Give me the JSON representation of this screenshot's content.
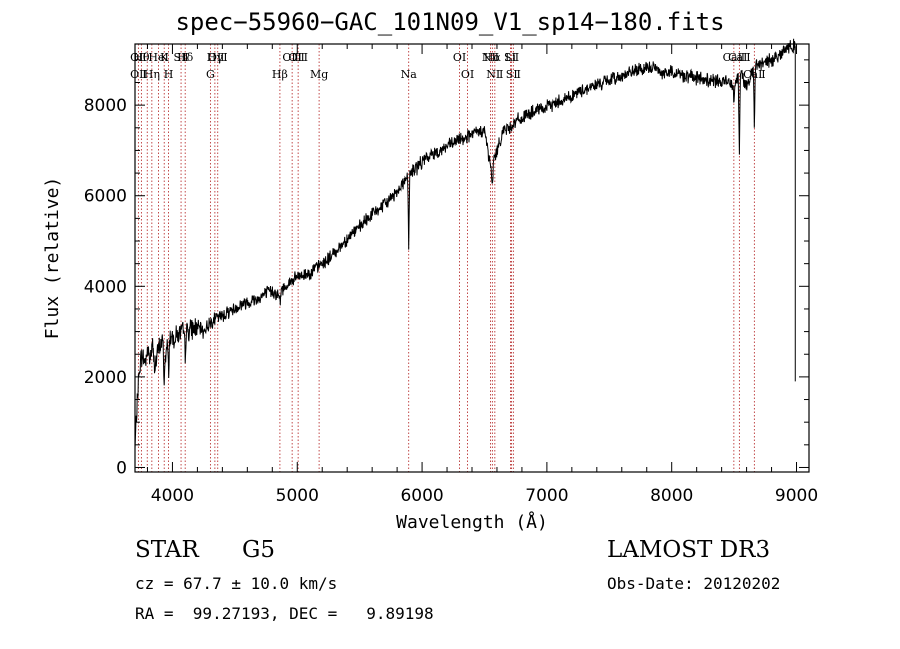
{
  "chart_data": {
    "type": "line",
    "title": "spec−55960−GAC_101N09_V1_sp14−180.fits",
    "xlabel": "Wavelength (Å)",
    "ylabel": "Flux (relative)",
    "xlim": [
      3700,
      9100
    ],
    "ylim": [
      -100,
      9350
    ],
    "x_ticks": [
      4000,
      5000,
      6000,
      7000,
      8000,
      9000
    ],
    "y_ticks": [
      0,
      2000,
      4000,
      6000,
      8000
    ],
    "x_tick_labels": [
      "4000",
      "5000",
      "6000",
      "7000",
      "8000",
      "9000"
    ],
    "y_tick_labels": [
      "0",
      "2000",
      "4000",
      "6000",
      "8000"
    ],
    "grid": false,
    "series": [
      {
        "name": "flux",
        "x": [
          3700,
          3720,
          3740,
          3760,
          3780,
          3800,
          3820,
          3840,
          3860,
          3880,
          3900,
          3920,
          3940,
          3960,
          3980,
          4000,
          4050,
          4100,
          4150,
          4200,
          4250,
          4300,
          4350,
          4400,
          4450,
          4500,
          4550,
          4600,
          4650,
          4700,
          4750,
          4800,
          4850,
          4900,
          4950,
          5000,
          5050,
          5100,
          5150,
          5200,
          5250,
          5300,
          5350,
          5400,
          5450,
          5500,
          5550,
          5600,
          5650,
          5700,
          5750,
          5800,
          5850,
          5900,
          5950,
          6000,
          6050,
          6100,
          6150,
          6200,
          6250,
          6300,
          6350,
          6400,
          6450,
          6500,
          6550,
          6600,
          6650,
          6700,
          6750,
          6800,
          6850,
          6900,
          6950,
          7000,
          7100,
          7200,
          7300,
          7400,
          7500,
          7600,
          7700,
          7800,
          7850,
          7900,
          7950,
          8000,
          8100,
          8200,
          8300,
          8400,
          8450,
          8500,
          8550,
          8600,
          8650,
          8700,
          8750,
          8800,
          8850,
          8900,
          8950,
          8990
        ],
        "values": [
          400,
          1600,
          2300,
          2500,
          2300,
          2600,
          2400,
          2700,
          2200,
          2500,
          2700,
          2800,
          2400,
          2700,
          2900,
          2850,
          2950,
          3000,
          3050,
          3100,
          3000,
          3200,
          3300,
          3350,
          3450,
          3500,
          3600,
          3650,
          3700,
          3750,
          3850,
          3900,
          3800,
          4000,
          4100,
          4200,
          4250,
          4300,
          4400,
          4500,
          4600,
          4750,
          4900,
          5050,
          5200,
          5300,
          5450,
          5600,
          5700,
          5800,
          5950,
          6100,
          6300,
          6500,
          6600,
          6750,
          6850,
          6950,
          7000,
          7100,
          7150,
          7250,
          7300,
          7350,
          7400,
          7450,
          6600,
          7000,
          7450,
          7500,
          7650,
          7700,
          7800,
          7850,
          7900,
          7950,
          8100,
          8200,
          8350,
          8450,
          8550,
          8650,
          8750,
          8800,
          8850,
          8750,
          8700,
          8750,
          8650,
          8600,
          8550,
          8500,
          8550,
          8450,
          8750,
          8400,
          8800,
          8900,
          8950,
          9000,
          9100,
          9200,
          9300,
          9300
        ],
        "dips": [
          {
            "x": 3934,
            "value": 1900
          },
          {
            "x": 3969,
            "value": 2100
          },
          {
            "x": 4102,
            "value": 2500
          },
          {
            "x": 4861,
            "value": 3600
          },
          {
            "x": 5893,
            "value": 4900
          },
          {
            "x": 6563,
            "value": 6100
          },
          {
            "x": 8498,
            "value": 8150
          },
          {
            "x": 8542,
            "value": 6900
          },
          {
            "x": 8662,
            "value": 7500
          }
        ]
      }
    ],
    "line_markers": [
      {
        "x": 3727,
        "rows": [
          "OⅡ",
          "OⅡ"
        ]
      },
      {
        "x": 3751,
        "rows": [
          "Hθ",
          ""
        ]
      },
      {
        "x": 3798,
        "rows": [
          "",
          ""
        ]
      },
      {
        "x": 3835,
        "rows": [
          "",
          "Hη"
        ]
      },
      {
        "x": 3889,
        "rows": [
          "HeI",
          ""
        ]
      },
      {
        "x": 3934,
        "rows": [
          "K",
          ""
        ]
      },
      {
        "x": 3969,
        "rows": [
          "",
          "H"
        ]
      },
      {
        "x": 4069,
        "rows": [
          "SⅡ",
          ""
        ]
      },
      {
        "x": 4102,
        "rows": [
          "Hδ",
          ""
        ]
      },
      {
        "x": 4304,
        "rows": [
          "",
          "G"
        ]
      },
      {
        "x": 4340,
        "rows": [
          "Hγ",
          ""
        ]
      },
      {
        "x": 4363,
        "rows": [
          "OⅢ",
          ""
        ]
      },
      {
        "x": 4861,
        "rows": [
          "",
          "Hβ"
        ]
      },
      {
        "x": 4959,
        "rows": [
          "OⅢ",
          ""
        ]
      },
      {
        "x": 5007,
        "rows": [
          "OⅢ",
          ""
        ]
      },
      {
        "x": 5175,
        "rows": [
          "",
          "Mg"
        ]
      },
      {
        "x": 5893,
        "rows": [
          "",
          "Na"
        ]
      },
      {
        "x": 6300,
        "rows": [
          "OI",
          ""
        ]
      },
      {
        "x": 6364,
        "rows": [
          "",
          "OI"
        ]
      },
      {
        "x": 6548,
        "rows": [
          "NⅡ",
          ""
        ]
      },
      {
        "x": 6563,
        "rows": [
          "Hα",
          ""
        ]
      },
      {
        "x": 6583,
        "rows": [
          "",
          "NⅡ"
        ]
      },
      {
        "x": 6708,
        "rows": [
          "Li",
          ""
        ]
      },
      {
        "x": 6717,
        "rows": [
          "SⅡ",
          ""
        ]
      },
      {
        "x": 6731,
        "rows": [
          "",
          "SⅡ"
        ]
      },
      {
        "x": 8498,
        "rows": [
          "CaⅡ",
          ""
        ]
      },
      {
        "x": 8542,
        "rows": [
          "CaⅡ",
          ""
        ]
      },
      {
        "x": 8662,
        "rows": [
          "",
          "CaⅡ"
        ]
      }
    ]
  },
  "footer": {
    "class_label": "STAR",
    "subclass": "G5",
    "survey": "LAMOST DR3",
    "cz": "cz = 67.7 ± 10.0 km/s",
    "obs_date": "Obs-Date: 20120202",
    "coords": "RA =  99.27193, DEC =   9.89198"
  }
}
